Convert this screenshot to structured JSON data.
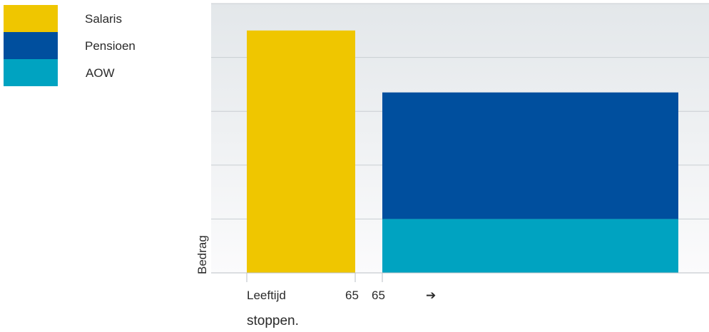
{
  "chart_data": {
    "type": "bar",
    "stacked": true,
    "ylabel": "Bedrag",
    "ylim": [
      0,
      5
    ],
    "grid": true,
    "legend_position": "top-left",
    "x_start_label": "Leeftijd",
    "x_tick_labels": [
      "65",
      "65"
    ],
    "arrow_glyph": "➔",
    "caption": "stoppen.",
    "colors": {
      "Salaris": "#efc600",
      "Pensioen": "#004f9e",
      "AOW": "#00a3c1"
    },
    "series": [
      {
        "name": "Salaris",
        "values": [
          4.5,
          0
        ]
      },
      {
        "name": "Pensioen",
        "values": [
          0,
          2.35
        ]
      },
      {
        "name": "AOW",
        "values": [
          0,
          1.0
        ]
      }
    ]
  }
}
